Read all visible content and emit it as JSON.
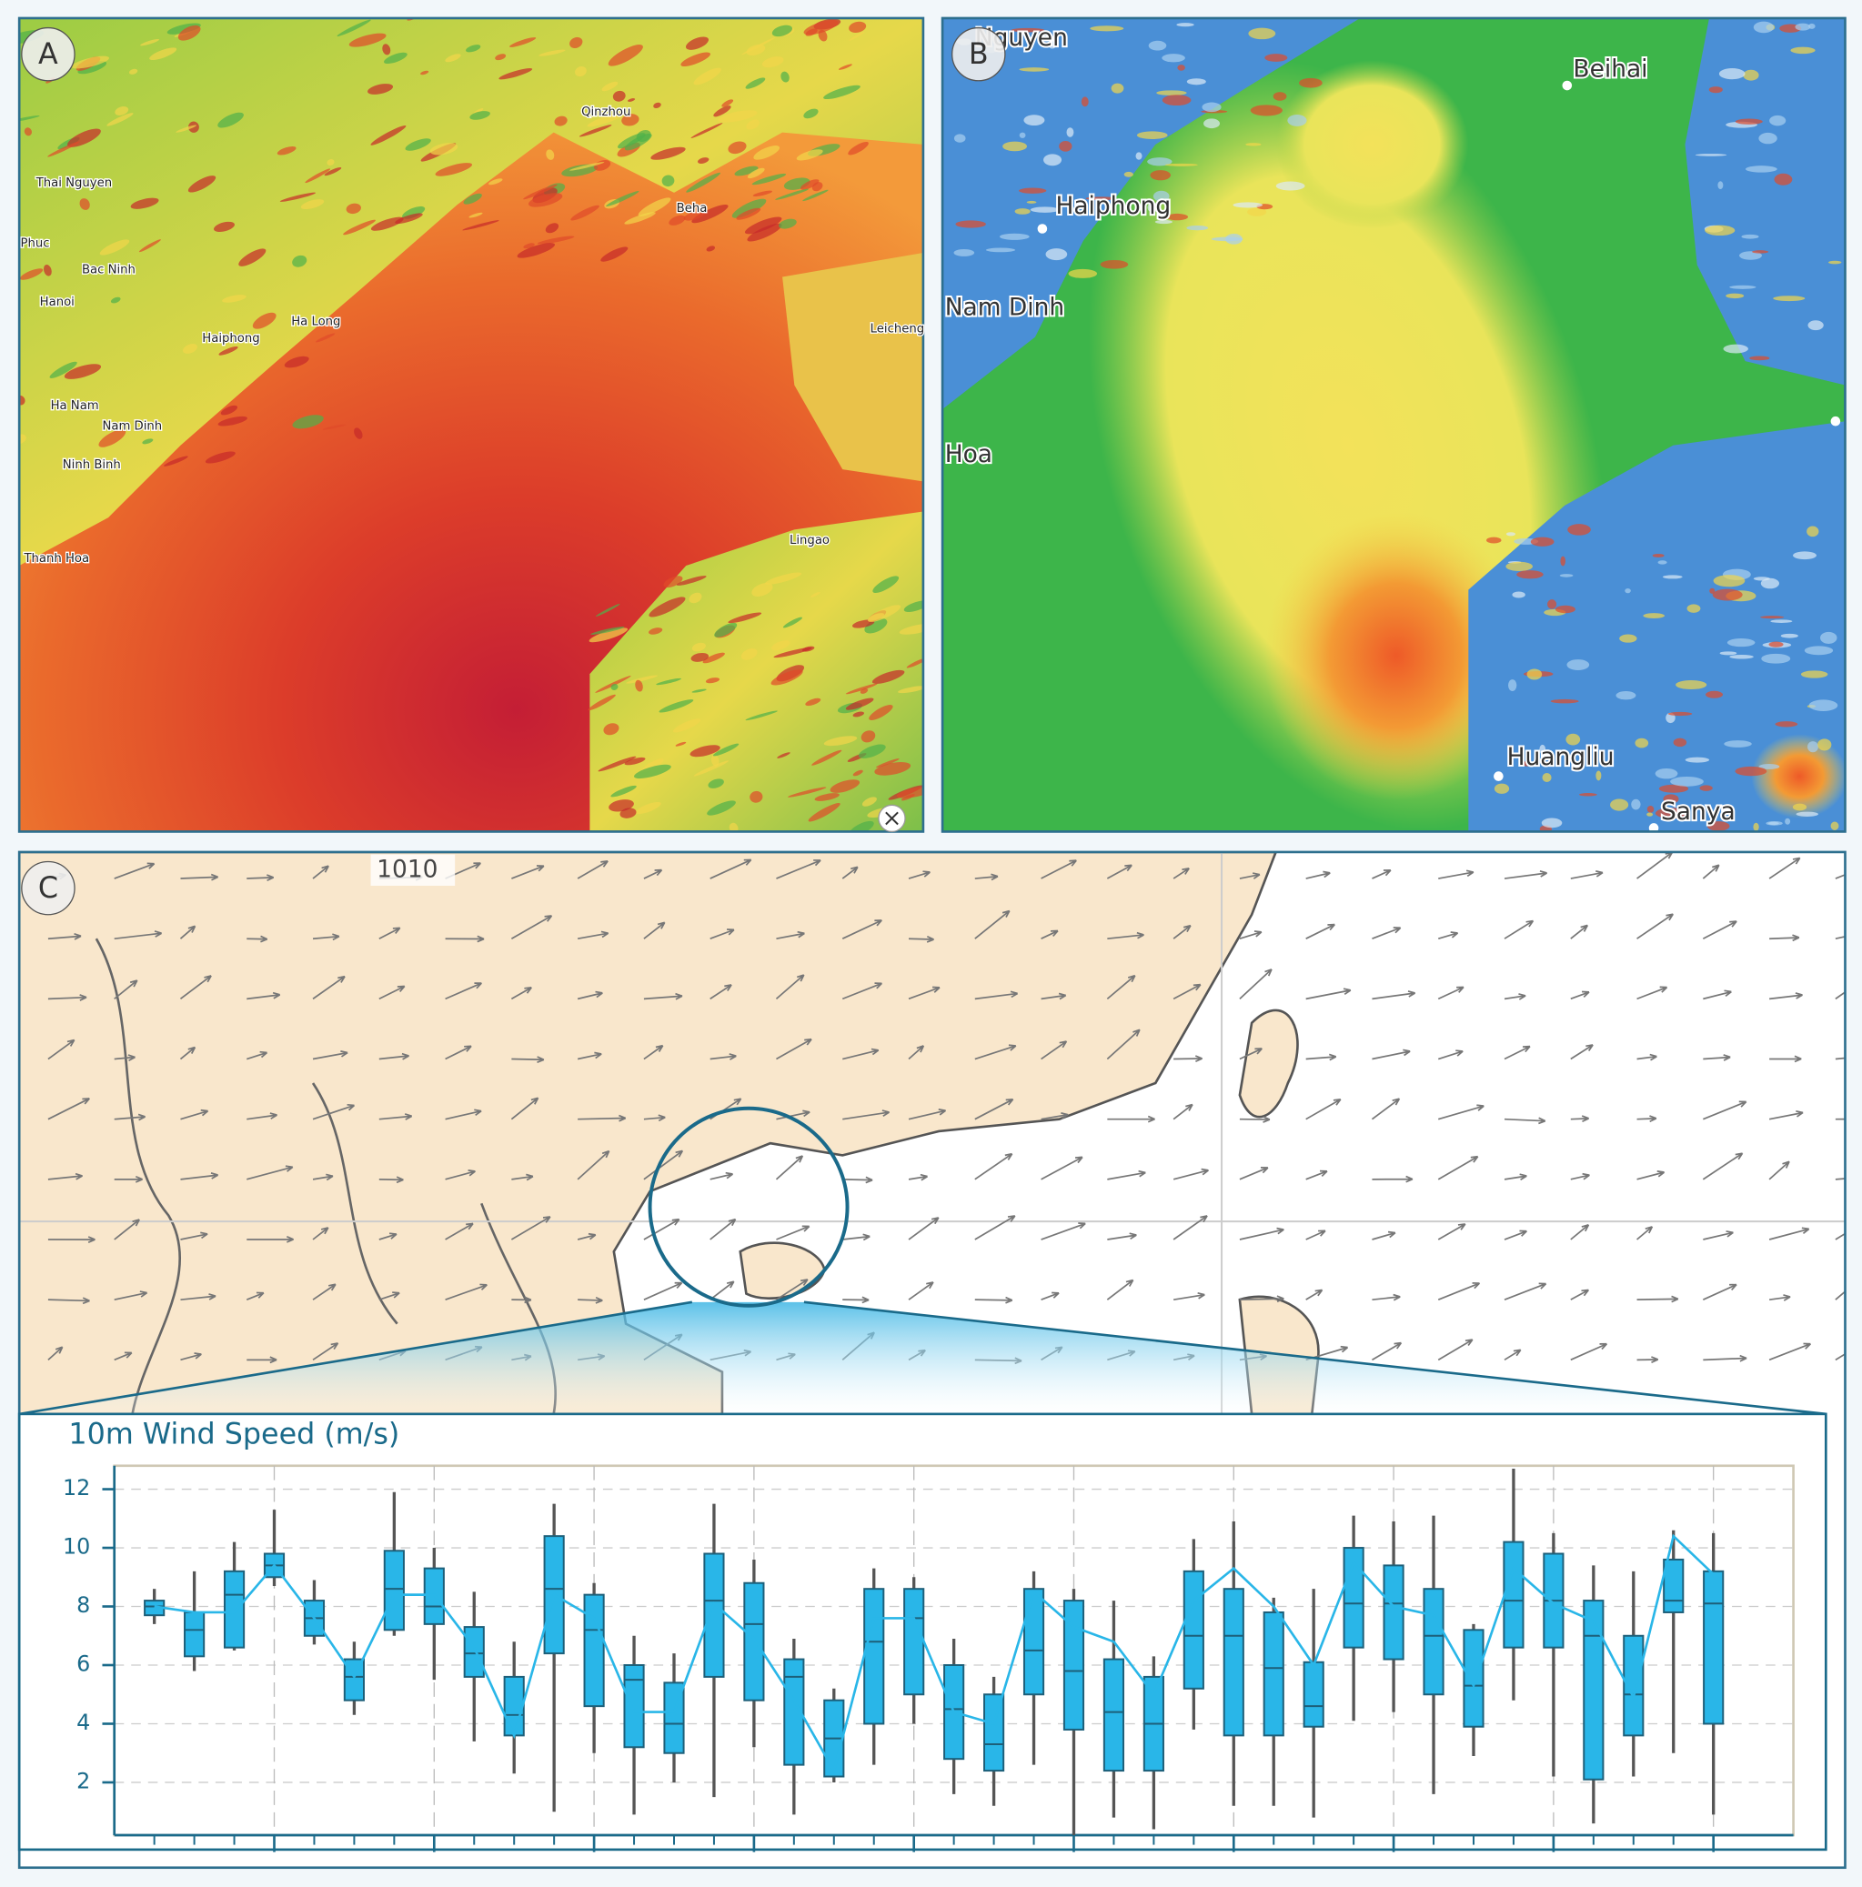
{
  "panels": [
    {
      "label": "A",
      "places": [
        "Thai Nguyen",
        "Phuc",
        "Bac Ninh",
        "Hanoi",
        "Haiphong",
        "Ha Long",
        "Ha Nam",
        "Nam Dinh",
        "Ninh Binh",
        "Thanh Hoa",
        "Qinzhou",
        "Beha",
        "Leicheng",
        "Lingao"
      ]
    },
    {
      "label": "B",
      "places": [
        "Nguyen",
        "Beihai",
        "Haiphong",
        "Nam Dinh",
        "Hoa",
        "Huangliu",
        "Sanya"
      ]
    },
    {
      "label": "C",
      "places": [
        "1010"
      ]
    }
  ],
  "chart_data": {
    "type": "box",
    "title": "10m Wind Speed (m/s)",
    "color": "#29b6e8",
    "x": [
      0,
      1,
      2,
      3,
      4,
      5,
      6,
      7,
      8,
      9,
      10,
      11,
      12,
      13,
      14,
      15,
      16,
      17,
      18,
      19,
      20,
      21,
      22,
      23,
      24,
      25,
      26,
      27,
      28,
      29,
      30,
      31,
      32,
      33,
      34,
      35,
      36,
      37,
      38,
      39
    ],
    "xlim": [
      -1,
      41
    ],
    "xticks": [
      3,
      7,
      11,
      15,
      19,
      23,
      27,
      31,
      35,
      39
    ],
    "ylim": [
      0.2,
      12.8
    ],
    "yticks": [
      2,
      4,
      6,
      8,
      10,
      12
    ],
    "grid": true,
    "whislo": [
      7.4,
      5.8,
      6.5,
      8.7,
      6.7,
      4.3,
      7.0,
      5.5,
      3.4,
      2.3,
      1.0,
      3.0,
      0.9,
      2.0,
      1.5,
      3.2,
      0.9,
      2.0,
      2.6,
      4.0,
      1.6,
      1.2,
      2.6,
      0.2,
      0.8,
      0.4,
      3.8,
      1.2,
      1.2,
      0.8,
      4.1,
      4.4,
      1.6,
      2.9,
      4.8,
      2.2,
      0.6,
      2.2,
      3.0,
      0.9
    ],
    "q1": [
      7.7,
      6.3,
      6.6,
      9.0,
      7.0,
      4.8,
      7.2,
      7.4,
      5.6,
      3.6,
      6.4,
      4.6,
      3.2,
      3.0,
      5.6,
      4.8,
      2.6,
      2.2,
      4.0,
      5.0,
      2.8,
      2.4,
      5.0,
      3.8,
      2.4,
      2.4,
      5.2,
      3.6,
      3.6,
      3.9,
      6.6,
      6.2,
      5.0,
      3.9,
      6.6,
      6.6,
      2.1,
      3.6,
      7.8,
      4.0
    ],
    "med": [
      8.0,
      7.2,
      8.4,
      9.4,
      7.6,
      5.6,
      8.6,
      8.0,
      6.4,
      4.3,
      8.6,
      7.2,
      5.5,
      4.0,
      8.2,
      7.4,
      5.6,
      3.5,
      6.8,
      7.6,
      4.5,
      3.3,
      6.5,
      5.8,
      4.4,
      4.0,
      7.0,
      7.0,
      5.9,
      4.6,
      8.1,
      8.1,
      7.0,
      5.3,
      8.2,
      8.2,
      7.0,
      5.0,
      8.2,
      8.1
    ],
    "q3": [
      8.2,
      7.8,
      9.2,
      9.8,
      8.2,
      6.2,
      9.9,
      9.3,
      7.3,
      5.6,
      10.4,
      8.4,
      6.0,
      5.4,
      9.8,
      8.8,
      6.2,
      4.8,
      8.6,
      8.6,
      6.0,
      5.0,
      8.6,
      8.2,
      6.2,
      5.6,
      9.2,
      8.6,
      7.8,
      6.1,
      10.0,
      9.4,
      8.6,
      7.2,
      10.2,
      9.8,
      8.2,
      7.0,
      9.6,
      9.2
    ],
    "whishi": [
      8.6,
      9.2,
      10.2,
      11.3,
      8.9,
      6.8,
      11.9,
      10.0,
      8.5,
      6.8,
      11.5,
      8.8,
      7.0,
      6.4,
      11.5,
      9.6,
      6.9,
      5.2,
      9.3,
      9.0,
      6.9,
      5.6,
      9.2,
      8.6,
      8.2,
      6.3,
      10.3,
      10.9,
      8.3,
      8.6,
      11.1,
      10.9,
      11.1,
      7.4,
      12.7,
      10.5,
      9.4,
      9.2,
      10.6,
      10.5
    ],
    "mean": [
      8.0,
      7.8,
      7.8,
      9.4,
      7.6,
      5.6,
      8.4,
      8.4,
      6.6,
      3.6,
      8.4,
      7.6,
      4.4,
      4.4,
      8.1,
      6.9,
      4.8,
      2.4,
      7.6,
      7.6,
      4.4,
      4.0,
      8.5,
      7.3,
      6.8,
      5.0,
      8.2,
      9.3,
      8.0,
      6.0,
      9.5,
      8.0,
      7.7,
      5.3,
      9.3,
      8.1,
      7.5,
      4.9,
      10.4,
      9.1
    ]
  }
}
